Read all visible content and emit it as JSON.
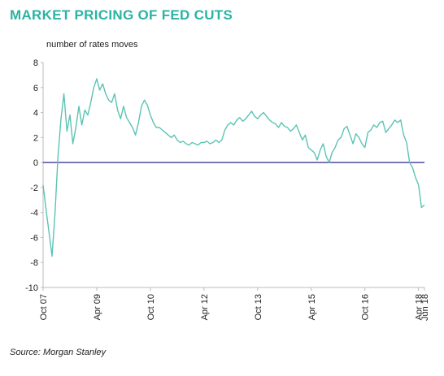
{
  "chart_data": {
    "type": "line",
    "title": "MARKET PRICING OF FED CUTS",
    "ylabel": "number of rates moves",
    "xlabel": "",
    "ylim": [
      -10,
      8
    ],
    "yticks": [
      8,
      6,
      4,
      2,
      0,
      -2,
      -4,
      -6,
      -8,
      -10
    ],
    "xticks": [
      "Oct 07",
      "Apr 09",
      "Oct 10",
      "Apr 12",
      "Oct 13",
      "Apr 15",
      "Oct 16",
      "Apr 18",
      "Jun 18"
    ],
    "zero_line": true,
    "grid": false,
    "colors": {
      "series": "#5cc3b4",
      "zero_line": "#2a2a8c",
      "axis": "#bbbbbb",
      "title": "#2bb3a3"
    },
    "series": [
      {
        "x": [
          "2007-10",
          "2007-11",
          "2007-12",
          "2008-01",
          "2008-02",
          "2008-03",
          "2008-04",
          "2008-05",
          "2008-06",
          "2008-07",
          "2008-08",
          "2008-09",
          "2008-10",
          "2008-11",
          "2008-12",
          "2009-01",
          "2009-02",
          "2009-03",
          "2009-04",
          "2009-05",
          "2009-06",
          "2009-07",
          "2009-08",
          "2009-09",
          "2009-10",
          "2009-11",
          "2009-12",
          "2010-01",
          "2010-02",
          "2010-03",
          "2010-04",
          "2010-05",
          "2010-06",
          "2010-07",
          "2010-08",
          "2010-09",
          "2010-10",
          "2010-11",
          "2010-12",
          "2011-01",
          "2011-02",
          "2011-03",
          "2011-04",
          "2011-05",
          "2011-06",
          "2011-07",
          "2011-08",
          "2011-09",
          "2011-10",
          "2011-11",
          "2011-12",
          "2012-01",
          "2012-02",
          "2012-03",
          "2012-04",
          "2012-05",
          "2012-06",
          "2012-07",
          "2012-08",
          "2012-09",
          "2012-10",
          "2012-11",
          "2012-12",
          "2013-01",
          "2013-02",
          "2013-03",
          "2013-04",
          "2013-05",
          "2013-06",
          "2013-07",
          "2013-08",
          "2013-09",
          "2013-10",
          "2013-11",
          "2013-12",
          "2014-01",
          "2014-02",
          "2014-03",
          "2014-04",
          "2014-05",
          "2014-06",
          "2014-07",
          "2014-08",
          "2014-09",
          "2014-10",
          "2014-11",
          "2014-12",
          "2015-01",
          "2015-02",
          "2015-03",
          "2015-04",
          "2015-05",
          "2015-06",
          "2015-07",
          "2015-08",
          "2015-09",
          "2015-10",
          "2015-11",
          "2015-12",
          "2016-01",
          "2016-02",
          "2016-03",
          "2016-04",
          "2016-05",
          "2016-06",
          "2016-07",
          "2016-08",
          "2016-09",
          "2016-10",
          "2016-11",
          "2016-12",
          "2017-01",
          "2017-02",
          "2017-03",
          "2017-04",
          "2017-05",
          "2017-06",
          "2017-07",
          "2017-08",
          "2017-09",
          "2017-10",
          "2017-11",
          "2017-12",
          "2018-01",
          "2018-02",
          "2018-03",
          "2018-04",
          "2018-05",
          "2018-06"
        ],
        "values": [
          -1.8,
          -3.8,
          -5.6,
          -7.5,
          -4.0,
          0.5,
          3.5,
          5.5,
          2.5,
          3.8,
          1.5,
          2.8,
          4.5,
          3.0,
          4.2,
          3.8,
          4.8,
          6.0,
          6.7,
          5.8,
          6.3,
          5.5,
          5.0,
          4.8,
          5.5,
          4.2,
          3.5,
          4.5,
          3.6,
          3.2,
          2.8,
          2.2,
          3.2,
          4.5,
          5.0,
          4.6,
          3.8,
          3.2,
          2.8,
          2.8,
          2.6,
          2.4,
          2.2,
          2.0,
          2.2,
          1.8,
          1.6,
          1.7,
          1.5,
          1.4,
          1.6,
          1.5,
          1.4,
          1.6,
          1.6,
          1.7,
          1.5,
          1.6,
          1.8,
          1.6,
          1.8,
          2.6,
          3.0,
          3.2,
          3.0,
          3.4,
          3.6,
          3.3,
          3.5,
          3.8,
          4.1,
          3.7,
          3.5,
          3.8,
          4.0,
          3.7,
          3.4,
          3.2,
          3.1,
          2.8,
          3.2,
          2.9,
          2.8,
          2.5,
          2.7,
          3.0,
          2.4,
          1.8,
          2.2,
          1.2,
          1.0,
          0.8,
          0.2,
          1.0,
          1.5,
          0.5,
          0.0,
          0.8,
          1.2,
          1.8,
          2.0,
          2.7,
          2.9,
          2.2,
          1.5,
          2.3,
          2.0,
          1.5,
          1.2,
          2.4,
          2.6,
          3.0,
          2.8,
          3.2,
          3.3,
          2.4,
          2.7,
          3.0,
          3.4,
          3.2,
          3.4,
          2.2,
          1.6,
          0.0,
          -0.4,
          -1.2,
          -1.8,
          -3.6,
          -3.4
        ]
      }
    ]
  },
  "header": {
    "title": "MARKET PRICING OF FED CUTS",
    "y_axis_label": "number of rates moves"
  },
  "footer": {
    "source": "Source: Morgan Stanley"
  }
}
